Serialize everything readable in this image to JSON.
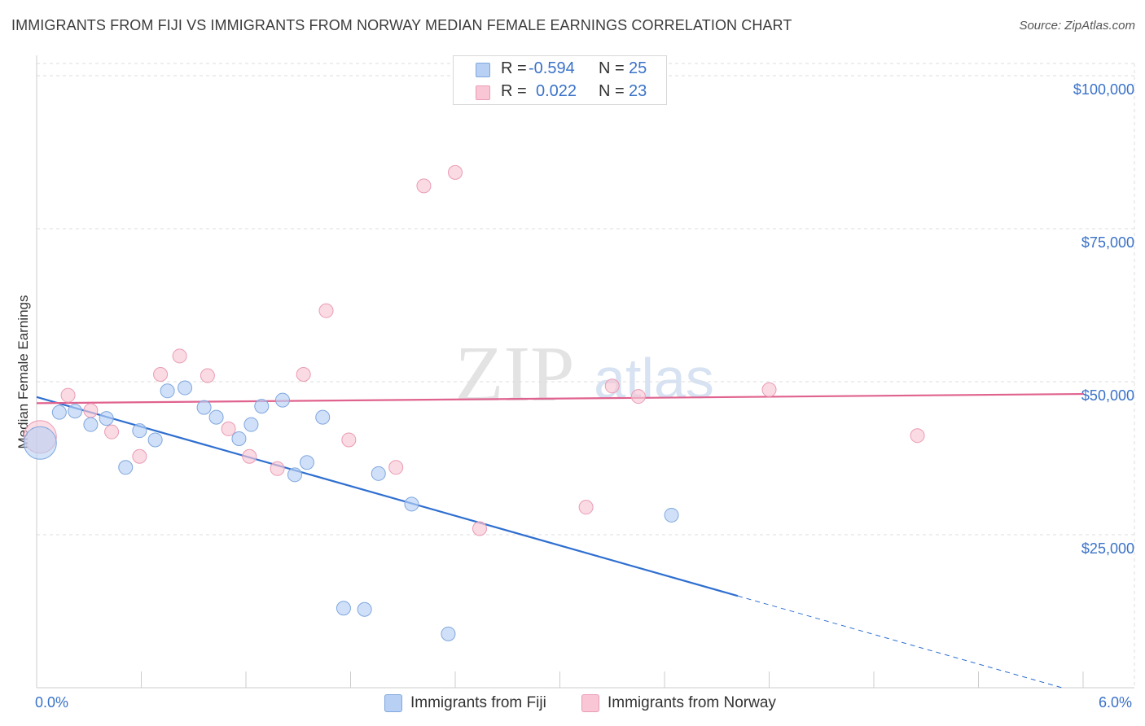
{
  "header": {
    "title": "IMMIGRANTS FROM FIJI VS IMMIGRANTS FROM NORWAY MEDIAN FEMALE EARNINGS CORRELATION CHART",
    "source": "Source: ZipAtlas.com"
  },
  "watermark": {
    "zip": "ZIP",
    "atlas": "atlas"
  },
  "stats_box": {
    "fiji": {
      "r_label": "R =",
      "r_value": "-0.594",
      "n_label": "N =",
      "n_value": "25"
    },
    "norway": {
      "r_label": "R =",
      "r_value": "0.022",
      "n_label": "N =",
      "n_value": "23"
    }
  },
  "legend": {
    "fiji_label": "Immigrants from Fiji",
    "norway_label": "Immigrants from Norway"
  },
  "colors": {
    "fiji_fill": "#b7d0f4",
    "fiji_stroke": "#7fa7de",
    "fiji_line": "#2f6fd0",
    "norway_fill": "#f8c6d4",
    "norway_stroke": "#ea9cb5",
    "norway_line": "#e0628e",
    "axis_label": "#3a72c8",
    "grid": "#dddddd"
  },
  "chart_data": {
    "type": "scatter",
    "title": "IMMIGRANTS FROM FIJI VS IMMIGRANTS FROM NORWAY MEDIAN FEMALE EARNINGS CORRELATION CHART",
    "xlabel": "",
    "ylabel": "Median Female Earnings",
    "xlim": [
      0,
      6.0
    ],
    "ylim": [
      0,
      102000
    ],
    "x_tick_labels": [
      {
        "value": 0,
        "label": "0.0%"
      },
      {
        "value": 6.0,
        "label": "6.0%"
      }
    ],
    "y_ticks": [
      {
        "value": 25000,
        "label": "$25,000"
      },
      {
        "value": 50000,
        "label": "$50,000"
      },
      {
        "value": 75000,
        "label": "$75,000"
      },
      {
        "value": 100000,
        "label": "$100,000"
      }
    ],
    "legend_position": "bottom",
    "series": [
      {
        "name": "Immigrants from Fiji",
        "points": [
          {
            "x": 0.02,
            "y": 40000,
            "big": true
          },
          {
            "x": 0.13,
            "y": 45000
          },
          {
            "x": 0.22,
            "y": 45200
          },
          {
            "x": 0.31,
            "y": 43000
          },
          {
            "x": 0.4,
            "y": 44000
          },
          {
            "x": 0.51,
            "y": 36000
          },
          {
            "x": 0.59,
            "y": 42000
          },
          {
            "x": 0.68,
            "y": 40500
          },
          {
            "x": 0.75,
            "y": 48500
          },
          {
            "x": 0.85,
            "y": 49000
          },
          {
            "x": 0.96,
            "y": 45800
          },
          {
            "x": 1.03,
            "y": 44200
          },
          {
            "x": 1.16,
            "y": 40700
          },
          {
            "x": 1.23,
            "y": 43000
          },
          {
            "x": 1.29,
            "y": 46000
          },
          {
            "x": 1.41,
            "y": 47000
          },
          {
            "x": 1.48,
            "y": 34800
          },
          {
            "x": 1.55,
            "y": 36800
          },
          {
            "x": 1.64,
            "y": 44200
          },
          {
            "x": 1.96,
            "y": 35000
          },
          {
            "x": 2.15,
            "y": 30000
          },
          {
            "x": 1.76,
            "y": 13000
          },
          {
            "x": 1.88,
            "y": 12800
          },
          {
            "x": 2.36,
            "y": 8800
          },
          {
            "x": 3.64,
            "y": 28200
          }
        ],
        "trend": {
          "x0": 0.0,
          "y0": 47500,
          "x1": 4.02,
          "y1": 15000,
          "dashed_to_x": 5.88,
          "dashed_to_y": 0
        }
      },
      {
        "name": "Immigrants from Norway",
        "points": [
          {
            "x": 0.02,
            "y": 41000,
            "big": true
          },
          {
            "x": 0.18,
            "y": 47800
          },
          {
            "x": 0.31,
            "y": 45300
          },
          {
            "x": 0.43,
            "y": 41800
          },
          {
            "x": 0.59,
            "y": 37800
          },
          {
            "x": 0.71,
            "y": 51200
          },
          {
            "x": 0.82,
            "y": 54200
          },
          {
            "x": 0.98,
            "y": 51000
          },
          {
            "x": 1.1,
            "y": 42300
          },
          {
            "x": 1.22,
            "y": 37800
          },
          {
            "x": 1.38,
            "y": 35800
          },
          {
            "x": 1.53,
            "y": 51200
          },
          {
            "x": 1.66,
            "y": 61600
          },
          {
            "x": 1.79,
            "y": 40500
          },
          {
            "x": 2.06,
            "y": 36000
          },
          {
            "x": 2.22,
            "y": 82000
          },
          {
            "x": 2.4,
            "y": 84200
          },
          {
            "x": 2.54,
            "y": 26000
          },
          {
            "x": 3.15,
            "y": 29500
          },
          {
            "x": 3.3,
            "y": 49300
          },
          {
            "x": 3.45,
            "y": 47600
          },
          {
            "x": 4.2,
            "y": 48700
          },
          {
            "x": 5.05,
            "y": 41200
          }
        ],
        "trend": {
          "x0": 0.0,
          "y0": 46500,
          "x1": 6.0,
          "y1": 48000
        }
      }
    ]
  }
}
